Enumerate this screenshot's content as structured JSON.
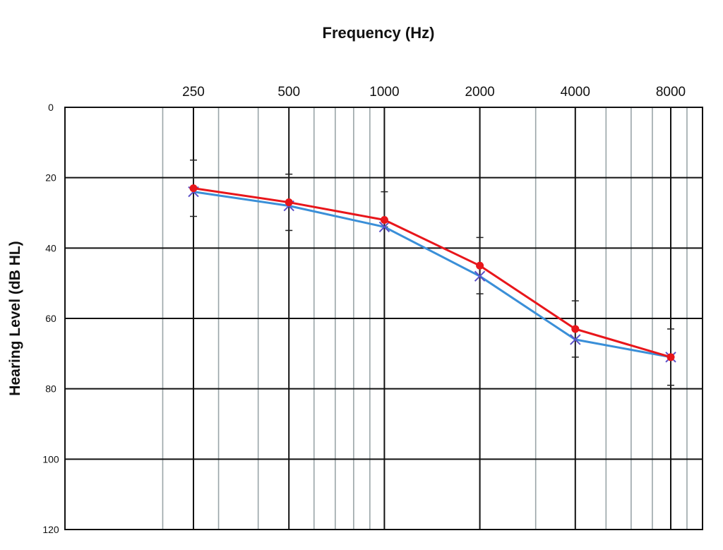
{
  "chart_data": {
    "type": "line",
    "title": "Frequency (Hz)",
    "xlabel": "Frequency (Hz)",
    "ylabel": "Hearing Level (dB HL)",
    "x_scale": "log",
    "xlim": [
      100,
      10000
    ],
    "ylim": [
      0,
      120
    ],
    "y_inverted": true,
    "x_ticks": [
      250,
      500,
      1000,
      2000,
      4000,
      8000
    ],
    "x_tick_labels": [
      "250",
      "500",
      "1000",
      "2000",
      "4000",
      "8000"
    ],
    "y_ticks": [
      0,
      20,
      40,
      60,
      80,
      100,
      120
    ],
    "y_tick_labels": [
      "0",
      "20",
      "40",
      "60",
      "80",
      "100",
      "120"
    ],
    "minor_x_grid": [
      200,
      300,
      400,
      600,
      700,
      800,
      900,
      3000,
      5000,
      6000,
      7000,
      9000
    ],
    "grid": true,
    "x": [
      250,
      500,
      1000,
      2000,
      4000,
      8000
    ],
    "series": [
      {
        "marker": "circle",
        "color": "#e8161b",
        "values": [
          23,
          27,
          32,
          45,
          63,
          71
        ]
      },
      {
        "marker": "x",
        "color": "#3a8fd8",
        "marker_color": "#5a4fc8",
        "values": [
          24,
          28,
          34,
          48,
          66,
          71
        ]
      }
    ],
    "error_bars": [
      {
        "x": 250,
        "low": 15,
        "high": 31
      },
      {
        "x": 500,
        "low": 19,
        "high": 35
      },
      {
        "x": 1000,
        "low": 24,
        "high": 34
      },
      {
        "x": 2000,
        "low": 37,
        "high": 53
      },
      {
        "x": 4000,
        "low": 55,
        "high": 71
      },
      {
        "x": 8000,
        "low": 63,
        "high": 79
      }
    ]
  }
}
